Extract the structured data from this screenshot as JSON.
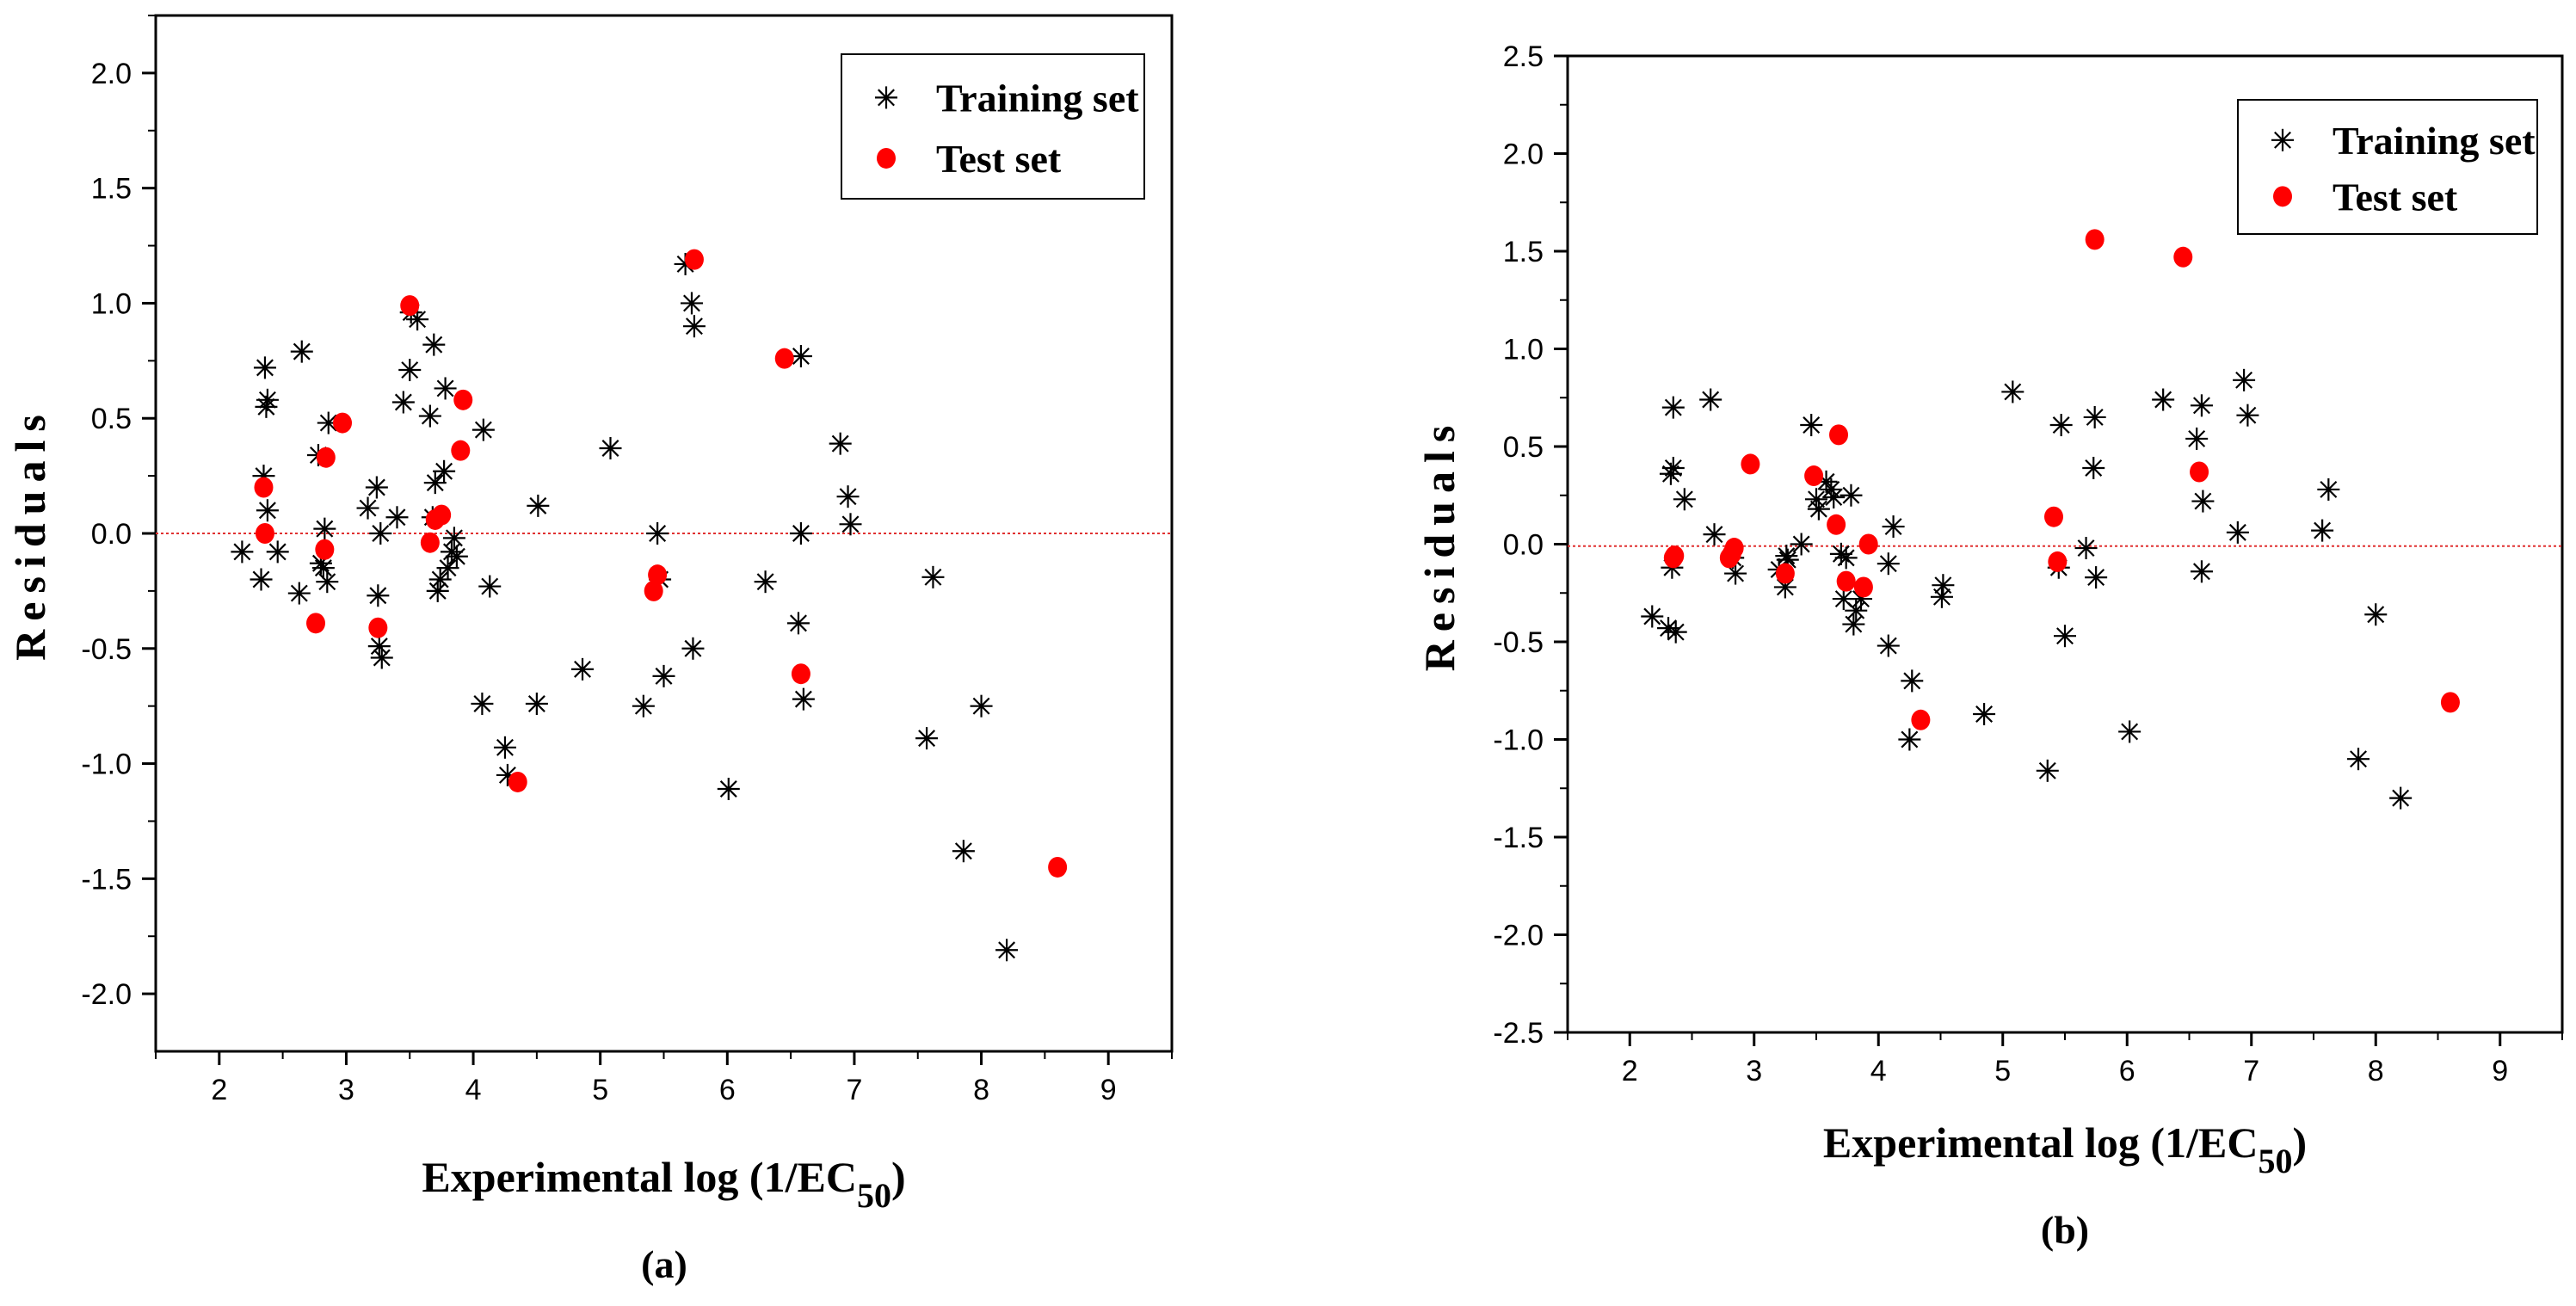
{
  "chart_data": [
    {
      "panel": "a",
      "type": "scatter",
      "caption": "(a)",
      "xlabel_main": "Experimental log (1/EC",
      "xlabel_sub": "50",
      "xlabel_close": ")",
      "ylabel": "Residuals",
      "xlim": [
        1.5,
        9.5
      ],
      "ylim": [
        -2.25,
        2.25
      ],
      "xticks": [
        "2",
        "3",
        "4",
        "5",
        "6",
        "7",
        "8",
        "9"
      ],
      "yticks": [
        "-2.0",
        "-1.5",
        "-1.0",
        "-0.5",
        "0.0",
        "0.5",
        "1.0",
        "1.5",
        "2.0"
      ],
      "reference_line_y": 0.0,
      "series": [
        {
          "name": "Training set",
          "marker": "asterisk",
          "color": "#000000",
          "x": [
            2.18,
            2.33,
            2.35,
            2.36,
            2.37,
            2.38,
            2.38,
            2.46,
            2.63,
            2.65,
            2.78,
            2.8,
            2.82,
            2.83,
            2.85,
            2.86,
            3.17,
            3.24,
            3.25,
            3.26,
            3.27,
            3.28,
            3.4,
            3.45,
            3.5,
            3.51,
            3.56,
            3.66,
            3.68,
            3.69,
            3.7,
            3.72,
            3.74,
            3.77,
            3.78,
            3.8,
            3.83,
            3.85,
            3.87,
            4.08,
            4.13,
            4.07,
            4.25,
            4.27,
            4.51,
            4.5,
            4.86,
            5.08,
            5.34,
            5.45,
            5.47,
            5.5,
            5.67,
            5.72,
            5.74,
            5.73,
            6.01,
            6.3,
            6.56,
            6.58,
            6.58,
            6.6,
            6.89,
            6.95,
            6.97,
            7.57,
            7.62,
            7.86,
            8.0,
            8.2
          ],
          "y": [
            -0.08,
            -0.2,
            0.25,
            0.72,
            0.55,
            0.58,
            0.1,
            -0.08,
            -0.26,
            0.79,
            0.34,
            -0.13,
            -0.15,
            0.02,
            -0.21,
            0.48,
            0.11,
            0.2,
            -0.27,
            -0.49,
            0.0,
            -0.54,
            0.07,
            0.57,
            0.71,
            0.96,
            0.93,
            0.51,
            0.07,
            0.82,
            0.22,
            -0.25,
            -0.2,
            0.27,
            0.63,
            -0.15,
            -0.08,
            -0.02,
            -0.1,
            0.45,
            -0.23,
            -0.74,
            -0.93,
            -1.05,
            0.12,
            -0.74,
            -0.59,
            0.37,
            -0.75,
            0.0,
            -0.2,
            -0.62,
            1.17,
            1.0,
            0.9,
            -0.5,
            -1.11,
            -0.21,
            -0.39,
            0.77,
            0.0,
            -0.72,
            0.39,
            0.16,
            0.04,
            -0.89,
            -0.19,
            -1.38,
            -0.75,
            -1.81
          ]
        },
        {
          "name": "Test set",
          "marker": "circle",
          "color": "#ff0000",
          "x": [
            2.35,
            2.36,
            2.76,
            2.83,
            2.84,
            2.97,
            3.25,
            3.5,
            3.66,
            3.7,
            3.75,
            3.9,
            3.92,
            4.35,
            5.42,
            5.45,
            5.74,
            6.45,
            6.58,
            8.6
          ],
          "y": [
            0.2,
            0.0,
            -0.39,
            -0.07,
            0.33,
            0.48,
            -0.41,
            0.99,
            -0.04,
            0.06,
            0.08,
            0.36,
            0.58,
            -1.08,
            -0.25,
            -0.18,
            1.19,
            0.76,
            -0.61,
            -1.45
          ]
        }
      ]
    },
    {
      "panel": "b",
      "type": "scatter",
      "caption": "(b)",
      "xlabel_main": "Experimental log (1/EC",
      "xlabel_sub": "50",
      "xlabel_close": ")",
      "ylabel": "Residuals",
      "xlim": [
        1.5,
        9.5
      ],
      "ylim": [
        -2.5,
        2.5
      ],
      "xticks": [
        "2",
        "3",
        "4",
        "5",
        "6",
        "7",
        "8",
        "9"
      ],
      "yticks": [
        "-2.5",
        "-2.0",
        "-1.5",
        "-1.0",
        "-0.5",
        "0.0",
        "0.5",
        "1.0",
        "1.5",
        "2.0",
        "2.5"
      ],
      "reference_line_y": -0.01,
      "series": [
        {
          "name": "Training set",
          "marker": "asterisk",
          "color": "#000000",
          "x": [
            2.18,
            2.31,
            2.33,
            2.34,
            2.35,
            2.35,
            2.37,
            2.44,
            2.65,
            2.68,
            2.83,
            2.85,
            3.2,
            3.25,
            3.26,
            3.27,
            3.38,
            3.46,
            3.5,
            3.52,
            3.58,
            3.62,
            3.64,
            3.7,
            3.72,
            3.74,
            3.78,
            3.8,
            3.82,
            3.86,
            4.08,
            4.12,
            4.08,
            4.27,
            4.25,
            4.51,
            4.52,
            4.85,
            5.08,
            5.36,
            5.45,
            5.47,
            5.5,
            5.67,
            5.73,
            5.74,
            5.75,
            6.02,
            6.29,
            6.56,
            6.6,
            6.61,
            6.6,
            6.89,
            6.94,
            6.97,
            7.57,
            7.62,
            7.86,
            8.0,
            8.2
          ],
          "y": [
            -0.37,
            -0.43,
            0.36,
            -0.12,
            0.7,
            0.39,
            -0.45,
            0.23,
            0.74,
            0.05,
            -0.07,
            -0.15,
            -0.13,
            -0.22,
            -0.06,
            -0.08,
            0.0,
            0.61,
            0.23,
            0.18,
            0.32,
            0.28,
            0.24,
            -0.05,
            -0.28,
            -0.07,
            0.25,
            -0.41,
            -0.34,
            -0.28,
            -0.1,
            0.09,
            -0.52,
            -0.7,
            -1.0,
            -0.27,
            -0.21,
            -0.87,
            0.78,
            -1.16,
            -0.12,
            0.61,
            -0.47,
            -0.02,
            0.39,
            0.65,
            -0.17,
            -0.96,
            0.74,
            0.54,
            0.71,
            0.22,
            -0.14,
            0.06,
            0.84,
            0.66,
            0.07,
            0.28,
            -1.1,
            -0.36,
            -1.3
          ]
        },
        {
          "name": "Test set",
          "marker": "circle",
          "color": "#ff0000",
          "x": [
            2.35,
            2.36,
            2.8,
            2.82,
            2.84,
            2.97,
            3.25,
            3.48,
            3.66,
            3.68,
            3.74,
            3.88,
            3.92,
            4.34,
            5.41,
            5.44,
            5.74,
            6.45,
            6.58,
            8.6
          ],
          "y": [
            -0.07,
            -0.06,
            -0.07,
            -0.05,
            -0.02,
            0.41,
            -0.15,
            0.35,
            0.1,
            0.56,
            -0.19,
            -0.22,
            0.0,
            -0.9,
            0.14,
            -0.09,
            1.56,
            1.47,
            0.37,
            -0.81
          ]
        }
      ]
    }
  ]
}
